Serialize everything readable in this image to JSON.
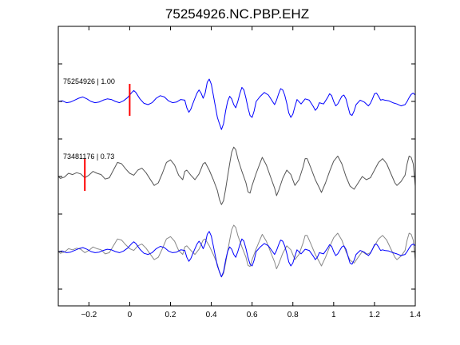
{
  "chart_data": {
    "type": "line",
    "title": "75254926.NC.PBP.EHZ",
    "xlim": [
      -0.35,
      1.4
    ],
    "x_ticks": [
      -0.2,
      0,
      0.2,
      0.4,
      0.6,
      0.8,
      1,
      1.2,
      1.4
    ],
    "x_tick_labels": [
      "−0.2",
      "0",
      "0.2",
      "0.4",
      "0.6",
      "0.8",
      "1",
      "1.2",
      "1.4"
    ],
    "y_tick_count": 7,
    "grid": false,
    "traces": [
      {
        "label": "75254926 | 1.00",
        "color": "#0000ff",
        "pick_time": 0.0,
        "pick_color": "#ff0000",
        "points": [
          [
            -0.35,
            0
          ],
          [
            -0.33,
            1
          ],
          [
            -0.31,
            -2
          ],
          [
            -0.29,
            -1
          ],
          [
            -0.27,
            2
          ],
          [
            -0.25,
            5
          ],
          [
            -0.23,
            7
          ],
          [
            -0.21,
            4
          ],
          [
            -0.19,
            0
          ],
          [
            -0.17,
            -2
          ],
          [
            -0.15,
            -1
          ],
          [
            -0.13,
            2
          ],
          [
            -0.11,
            4
          ],
          [
            -0.09,
            3
          ],
          [
            -0.07,
            0
          ],
          [
            -0.05,
            -2
          ],
          [
            -0.03,
            1
          ],
          [
            -0.01,
            6
          ],
          [
            0.0,
            10
          ],
          [
            0.01,
            14
          ],
          [
            0.02,
            17
          ],
          [
            0.03,
            14
          ],
          [
            0.05,
            4
          ],
          [
            0.07,
            -3
          ],
          [
            0.09,
            -5
          ],
          [
            0.11,
            -2
          ],
          [
            0.13,
            5
          ],
          [
            0.15,
            9
          ],
          [
            0.17,
            7
          ],
          [
            0.19,
            1
          ],
          [
            0.21,
            -2
          ],
          [
            0.23,
            -1
          ],
          [
            0.25,
            3
          ],
          [
            0.27,
            2
          ],
          [
            0.28,
            -10
          ],
          [
            0.29,
            -17
          ],
          [
            0.3,
            -12
          ],
          [
            0.31,
            -3
          ],
          [
            0.32,
            5
          ],
          [
            0.33,
            13
          ],
          [
            0.34,
            18
          ],
          [
            0.35,
            13
          ],
          [
            0.36,
            5
          ],
          [
            0.37,
            13
          ],
          [
            0.38,
            30
          ],
          [
            0.39,
            35
          ],
          [
            0.4,
            27
          ],
          [
            0.41,
            10
          ],
          [
            0.42,
            -8
          ],
          [
            0.43,
            -25
          ],
          [
            0.44,
            -35
          ],
          [
            0.45,
            -44
          ],
          [
            0.46,
            -35
          ],
          [
            0.47,
            -15
          ],
          [
            0.48,
            0
          ],
          [
            0.49,
            8
          ],
          [
            0.5,
            4
          ],
          [
            0.51,
            -5
          ],
          [
            0.52,
            -10
          ],
          [
            0.53,
            0
          ],
          [
            0.54,
            12
          ],
          [
            0.55,
            22
          ],
          [
            0.56,
            18
          ],
          [
            0.57,
            5
          ],
          [
            0.58,
            -10
          ],
          [
            0.59,
            -22
          ],
          [
            0.6,
            -25
          ],
          [
            0.61,
            -15
          ],
          [
            0.62,
            0
          ],
          [
            0.64,
            8
          ],
          [
            0.66,
            14
          ],
          [
            0.68,
            10
          ],
          [
            0.7,
            0
          ],
          [
            0.71,
            -5
          ],
          [
            0.72,
            2
          ],
          [
            0.73,
            12
          ],
          [
            0.74,
            20
          ],
          [
            0.75,
            18
          ],
          [
            0.76,
            10
          ],
          [
            0.77,
            -3
          ],
          [
            0.78,
            -18
          ],
          [
            0.79,
            -25
          ],
          [
            0.8,
            -20
          ],
          [
            0.81,
            -8
          ],
          [
            0.82,
            3
          ],
          [
            0.84,
            -4
          ],
          [
            0.86,
            4
          ],
          [
            0.88,
            2
          ],
          [
            0.9,
            -8
          ],
          [
            0.91,
            -14
          ],
          [
            0.92,
            -10
          ],
          [
            0.93,
            -2
          ],
          [
            0.95,
            -4
          ],
          [
            0.97,
            6
          ],
          [
            0.98,
            12
          ],
          [
            0.99,
            9
          ],
          [
            1.0,
            0
          ],
          [
            1.01,
            -7
          ],
          [
            1.02,
            -4
          ],
          [
            1.04,
            8
          ],
          [
            1.05,
            10
          ],
          [
            1.06,
            4
          ],
          [
            1.07,
            -8
          ],
          [
            1.08,
            -20
          ],
          [
            1.09,
            -22
          ],
          [
            1.1,
            -15
          ],
          [
            1.11,
            -5
          ],
          [
            1.13,
            2
          ],
          [
            1.15,
            -1
          ],
          [
            1.17,
            -7
          ],
          [
            1.18,
            -3
          ],
          [
            1.19,
            4
          ],
          [
            1.2,
            12
          ],
          [
            1.21,
            13
          ],
          [
            1.22,
            8
          ],
          [
            1.23,
            2
          ],
          [
            1.24,
            3
          ],
          [
            1.25,
            2
          ],
          [
            1.27,
            1
          ],
          [
            1.29,
            -2
          ],
          [
            1.31,
            -4
          ],
          [
            1.33,
            -7
          ],
          [
            1.35,
            -5
          ],
          [
            1.36,
            0
          ],
          [
            1.37,
            6
          ],
          [
            1.38,
            11
          ],
          [
            1.39,
            13
          ],
          [
            1.4,
            10
          ]
        ]
      },
      {
        "label": "73481176 | 0.73",
        "color": "#555555",
        "pick_time": -0.22,
        "pick_color": "#ff0000",
        "points": [
          [
            -0.35,
            0
          ],
          [
            -0.34,
            -3
          ],
          [
            -0.32,
            -1
          ],
          [
            -0.3,
            5
          ],
          [
            -0.28,
            3
          ],
          [
            -0.26,
            6
          ],
          [
            -0.24,
            4
          ],
          [
            -0.22,
            -2
          ],
          [
            -0.2,
            2
          ],
          [
            -0.18,
            8
          ],
          [
            -0.16,
            5
          ],
          [
            -0.14,
            3
          ],
          [
            -0.12,
            -4
          ],
          [
            -0.1,
            -2
          ],
          [
            -0.08,
            10
          ],
          [
            -0.06,
            22
          ],
          [
            -0.04,
            20
          ],
          [
            -0.02,
            12
          ],
          [
            0.0,
            5
          ],
          [
            0.02,
            2
          ],
          [
            0.04,
            10
          ],
          [
            0.06,
            13
          ],
          [
            0.08,
            6
          ],
          [
            0.1,
            -4
          ],
          [
            0.12,
            -14
          ],
          [
            0.14,
            -10
          ],
          [
            0.16,
            5
          ],
          [
            0.18,
            22
          ],
          [
            0.2,
            26
          ],
          [
            0.22,
            18
          ],
          [
            0.24,
            2
          ],
          [
            0.26,
            -5
          ],
          [
            0.27,
            8
          ],
          [
            0.28,
            10
          ],
          [
            0.3,
            2
          ],
          [
            0.32,
            -5
          ],
          [
            0.34,
            4
          ],
          [
            0.36,
            20
          ],
          [
            0.37,
            22
          ],
          [
            0.39,
            10
          ],
          [
            0.41,
            -5
          ],
          [
            0.43,
            -22
          ],
          [
            0.44,
            -36
          ],
          [
            0.45,
            -44
          ],
          [
            0.46,
            -38
          ],
          [
            0.47,
            -20
          ],
          [
            0.48,
            0
          ],
          [
            0.49,
            20
          ],
          [
            0.5,
            38
          ],
          [
            0.51,
            46
          ],
          [
            0.52,
            42
          ],
          [
            0.53,
            28
          ],
          [
            0.55,
            8
          ],
          [
            0.57,
            -10
          ],
          [
            0.58,
            -24
          ],
          [
            0.59,
            -26
          ],
          [
            0.6,
            -14
          ],
          [
            0.62,
            5
          ],
          [
            0.64,
            22
          ],
          [
            0.65,
            30
          ],
          [
            0.67,
            18
          ],
          [
            0.69,
            0
          ],
          [
            0.71,
            -18
          ],
          [
            0.72,
            -30
          ],
          [
            0.73,
            -22
          ],
          [
            0.75,
            -3
          ],
          [
            0.77,
            10
          ],
          [
            0.79,
            3
          ],
          [
            0.81,
            -14
          ],
          [
            0.83,
            -5
          ],
          [
            0.85,
            15
          ],
          [
            0.86,
            28
          ],
          [
            0.87,
            28
          ],
          [
            0.89,
            12
          ],
          [
            0.91,
            -5
          ],
          [
            0.93,
            -18
          ],
          [
            0.94,
            -25
          ],
          [
            0.96,
            -10
          ],
          [
            0.98,
            8
          ],
          [
            1.0,
            24
          ],
          [
            1.02,
            32
          ],
          [
            1.04,
            20
          ],
          [
            1.06,
            0
          ],
          [
            1.08,
            -15
          ],
          [
            1.1,
            -20
          ],
          [
            1.12,
            -10
          ],
          [
            1.14,
            0
          ],
          [
            1.16,
            -5
          ],
          [
            1.18,
            -2
          ],
          [
            1.2,
            10
          ],
          [
            1.22,
            22
          ],
          [
            1.24,
            28
          ],
          [
            1.26,
            20
          ],
          [
            1.28,
            5
          ],
          [
            1.3,
            -10
          ],
          [
            1.31,
            -14
          ],
          [
            1.33,
            -8
          ],
          [
            1.35,
            2
          ],
          [
            1.36,
            20
          ],
          [
            1.37,
            32
          ],
          [
            1.38,
            30
          ],
          [
            1.39,
            20
          ],
          [
            1.4,
            -15
          ]
        ]
      }
    ]
  }
}
